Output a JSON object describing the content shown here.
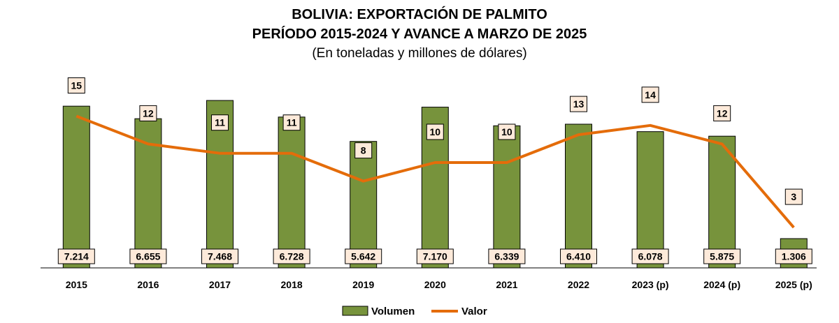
{
  "chart_data": {
    "type": "bar",
    "title": "BOLIVIA: EXPORTACIÓN DE PALMITO",
    "title_line2": "PERÍODO 2015-2024 Y AVANCE A MARZO DE 2025",
    "subtitle": "(En toneladas y millones de dólares)",
    "categories": [
      "2015",
      "2016",
      "2017",
      "2018",
      "2019",
      "2020",
      "2021",
      "2022",
      "2023 (p)",
      "2024 (p)",
      "2025 (p)"
    ],
    "series": [
      {
        "name": "Volumen",
        "type": "bar",
        "color": "#77933C",
        "values": [
          7214,
          6655,
          7468,
          6728,
          5642,
          7170,
          6339,
          6410,
          6078,
          5875,
          1306
        ],
        "labels": [
          "7.214",
          "6.655",
          "7.468",
          "6.728",
          "5.642",
          "7.170",
          "6.339",
          "6.410",
          "6.078",
          "5.875",
          "1.306"
        ]
      },
      {
        "name": "Valor",
        "type": "line",
        "color": "#E46C0A",
        "values": [
          15,
          12,
          11,
          11,
          8,
          10,
          10,
          13,
          14,
          12,
          3
        ],
        "labels": [
          "15",
          "12",
          "11",
          "11",
          "8",
          "10",
          "10",
          "13",
          "14",
          "12",
          "3"
        ],
        "label_visible": [
          true,
          true,
          true,
          true,
          true,
          true,
          true,
          true,
          true,
          true,
          true
        ]
      }
    ],
    "legend_position": "bottom",
    "grid": false
  }
}
